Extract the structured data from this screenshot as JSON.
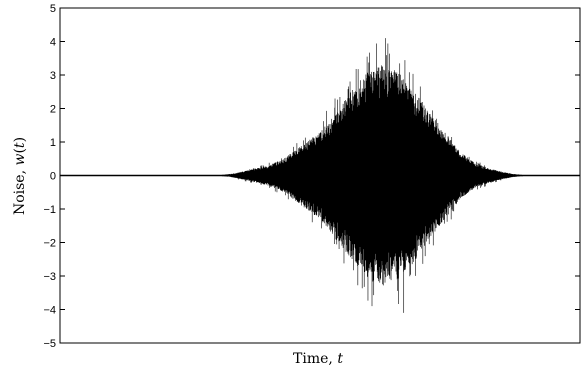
{
  "chart_data": {
    "type": "line",
    "title": "",
    "xlabel": "Time, ",
    "xlabel_var": "t",
    "ylabel_prefix": "Noise, ",
    "ylabel_var": "w",
    "ylabel_paren_open": "(",
    "ylabel_paren_var": "t",
    "ylabel_paren_close": ")",
    "ylim": [
      -5,
      5
    ],
    "yticks": [
      5,
      4,
      3,
      2,
      1,
      0,
      -1,
      -2,
      -3,
      -4,
      -5
    ],
    "ytick_labels": [
      "5",
      "4",
      "3",
      "2",
      "1",
      "0",
      "−1",
      "−2",
      "−3",
      "−4",
      "−5"
    ],
    "xlim": [
      0,
      1
    ],
    "xticks_shown": false,
    "grid": false,
    "legend": "none",
    "color": "#000000",
    "series": [
      {
        "envelope_x": [
          0.0,
          0.3,
          0.33,
          0.36,
          0.4,
          0.43,
          0.46,
          0.5,
          0.53,
          0.56,
          0.59,
          0.62,
          0.65,
          0.68,
          0.71,
          0.74,
          0.77,
          0.8,
          0.84,
          0.87,
          0.9,
          1.0
        ],
        "envelope_amplitude": [
          0.0,
          0.0,
          0.05,
          0.15,
          0.3,
          0.5,
          0.85,
          1.3,
          1.9,
          2.5,
          3.1,
          3.3,
          3.1,
          2.6,
          1.9,
          1.3,
          0.7,
          0.35,
          0.15,
          0.05,
          0.0,
          0.0
        ],
        "peak_max": 4.1,
        "peak_min": -4.1,
        "peak_x": 0.626
      }
    ]
  }
}
